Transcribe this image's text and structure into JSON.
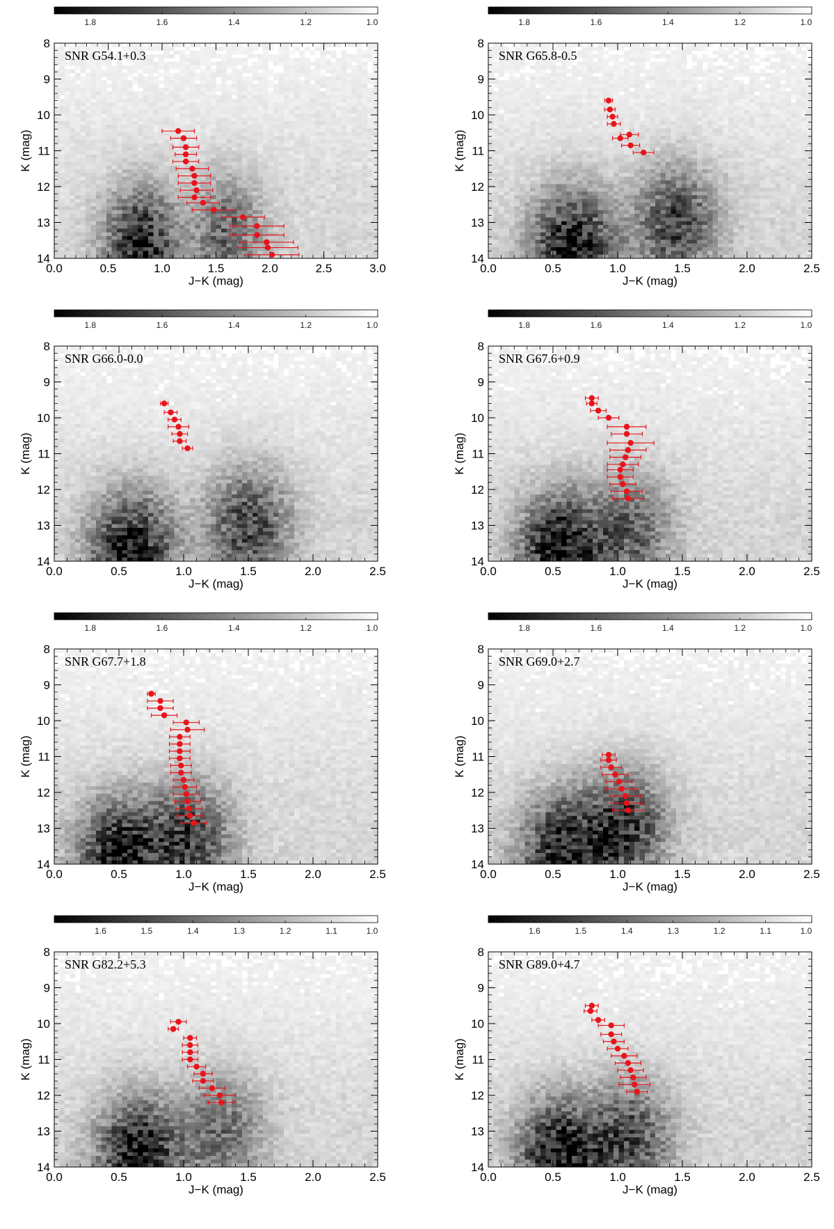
{
  "chart_data": [
    {
      "type": "scatter",
      "title": "SNR G54.1+0.3",
      "xlabel": "J−K (mag)",
      "ylabel": "K (mag)",
      "xlim": [
        0.0,
        3.0
      ],
      "ylim": [
        14.0,
        8.0
      ],
      "xticks": [
        "0.0",
        "0.5",
        "1.0",
        "1.5",
        "2.0",
        "2.5",
        "3.0"
      ],
      "yticks": [
        "8",
        "9",
        "10",
        "11",
        "12",
        "13",
        "14"
      ],
      "colorbar": {
        "ticks": [
          "1.8",
          "1.6",
          "1.4",
          "1.2",
          "1.0"
        ],
        "min": 1.0,
        "max": 1.9
      },
      "density_peaks": [
        [
          0.8,
          13.7,
          1.0
        ],
        [
          1.6,
          13.3,
          0.6
        ]
      ],
      "series": [
        {
          "points": [
            {
              "x": 1.15,
              "y": 10.45,
              "xerr": 0.15
            },
            {
              "x": 1.2,
              "y": 10.65,
              "xerr": 0.12
            },
            {
              "x": 1.22,
              "y": 10.9,
              "xerr": 0.12
            },
            {
              "x": 1.22,
              "y": 11.1,
              "xerr": 0.1
            },
            {
              "x": 1.22,
              "y": 11.3,
              "xerr": 0.12
            },
            {
              "x": 1.28,
              "y": 11.5,
              "xerr": 0.15
            },
            {
              "x": 1.3,
              "y": 11.7,
              "xerr": 0.15
            },
            {
              "x": 1.3,
              "y": 11.9,
              "xerr": 0.15
            },
            {
              "x": 1.32,
              "y": 12.1,
              "xerr": 0.15
            },
            {
              "x": 1.3,
              "y": 12.3,
              "xerr": 0.15
            },
            {
              "x": 1.38,
              "y": 12.45,
              "xerr": 0.15
            },
            {
              "x": 1.48,
              "y": 12.65,
              "xerr": 0.2
            },
            {
              "x": 1.75,
              "y": 12.85,
              "xerr": 0.2
            },
            {
              "x": 1.88,
              "y": 13.1,
              "xerr": 0.25
            },
            {
              "x": 1.88,
              "y": 13.35,
              "xerr": 0.25
            },
            {
              "x": 1.97,
              "y": 13.55,
              "xerr": 0.25
            },
            {
              "x": 1.98,
              "y": 13.7,
              "xerr": 0.28
            },
            {
              "x": 2.02,
              "y": 13.9,
              "xerr": 0.25
            }
          ]
        }
      ]
    },
    {
      "type": "scatter",
      "title": "SNR G65.8-0.5",
      "xlabel": "J−K (mag)",
      "ylabel": "K (mag)",
      "xlim": [
        0.0,
        2.5
      ],
      "ylim": [
        14.0,
        8.0
      ],
      "xticks": [
        "0.0",
        "0.5",
        "1.0",
        "1.5",
        "2.0",
        "2.5"
      ],
      "yticks": [
        "8",
        "9",
        "10",
        "11",
        "12",
        "13",
        "14"
      ],
      "colorbar": {
        "ticks": [
          "1.8",
          "1.6",
          "1.4",
          "1.2",
          "1.0"
        ],
        "min": 1.0,
        "max": 1.9
      },
      "density_peaks": [
        [
          0.65,
          13.7,
          1.0
        ],
        [
          1.45,
          13.0,
          0.75
        ]
      ],
      "series": [
        {
          "points": [
            {
              "x": 0.93,
              "y": 9.6,
              "xerr": 0.03
            },
            {
              "x": 0.94,
              "y": 9.85,
              "xerr": 0.04
            },
            {
              "x": 0.96,
              "y": 10.05,
              "xerr": 0.04
            },
            {
              "x": 0.97,
              "y": 10.25,
              "xerr": 0.05
            },
            {
              "x": 1.09,
              "y": 10.55,
              "xerr": 0.07
            },
            {
              "x": 1.02,
              "y": 10.65,
              "xerr": 0.06
            },
            {
              "x": 1.1,
              "y": 10.85,
              "xerr": 0.07
            },
            {
              "x": 1.2,
              "y": 11.05,
              "xerr": 0.08
            }
          ]
        }
      ]
    },
    {
      "type": "scatter",
      "title": "SNR G66.0-0.0",
      "xlabel": "J−K (mag)",
      "ylabel": "K (mag)",
      "xlim": [
        0.0,
        2.5
      ],
      "ylim": [
        14.0,
        8.0
      ],
      "xticks": [
        "0.0",
        "0.5",
        "1.0",
        "1.5",
        "2.0",
        "2.5"
      ],
      "yticks": [
        "8",
        "9",
        "10",
        "11",
        "12",
        "13",
        "14"
      ],
      "colorbar": {
        "ticks": [
          "1.8",
          "1.6",
          "1.4",
          "1.2",
          "1.0"
        ],
        "min": 1.0,
        "max": 1.9
      },
      "density_peaks": [
        [
          0.6,
          13.7,
          1.0
        ],
        [
          1.5,
          13.0,
          0.75
        ]
      ],
      "series": [
        {
          "points": [
            {
              "x": 0.85,
              "y": 9.6,
              "xerr": 0.03
            },
            {
              "x": 0.9,
              "y": 9.85,
              "xerr": 0.05
            },
            {
              "x": 0.93,
              "y": 10.05,
              "xerr": 0.05
            },
            {
              "x": 0.96,
              "y": 10.25,
              "xerr": 0.08
            },
            {
              "x": 0.97,
              "y": 10.45,
              "xerr": 0.06
            },
            {
              "x": 0.97,
              "y": 10.65,
              "xerr": 0.05
            },
            {
              "x": 1.03,
              "y": 10.85,
              "xerr": 0.04
            }
          ]
        }
      ]
    },
    {
      "type": "scatter",
      "title": "SNR G67.6+0.9",
      "xlabel": "J−K (mag)",
      "ylabel": "K (mag)",
      "xlim": [
        0.0,
        2.5
      ],
      "ylim": [
        14.0,
        8.0
      ],
      "xticks": [
        "0.0",
        "0.5",
        "1.0",
        "1.5",
        "2.0",
        "2.5"
      ],
      "yticks": [
        "8",
        "9",
        "10",
        "11",
        "12",
        "13",
        "14"
      ],
      "colorbar": {
        "ticks": [
          "1.8",
          "1.6",
          "1.4",
          "1.2",
          "1.0"
        ],
        "min": 1.0,
        "max": 1.9
      },
      "density_peaks": [
        [
          0.55,
          13.7,
          1.0
        ],
        [
          1.1,
          13.2,
          0.6
        ]
      ],
      "series": [
        {
          "points": [
            {
              "x": 0.8,
              "y": 9.45,
              "xerr": 0.05
            },
            {
              "x": 0.8,
              "y": 9.6,
              "xerr": 0.04
            },
            {
              "x": 0.85,
              "y": 9.8,
              "xerr": 0.06
            },
            {
              "x": 0.93,
              "y": 10.0,
              "xerr": 0.08
            },
            {
              "x": 1.07,
              "y": 10.25,
              "xerr": 0.15
            },
            {
              "x": 1.07,
              "y": 10.45,
              "xerr": 0.12
            },
            {
              "x": 1.1,
              "y": 10.7,
              "xerr": 0.18
            },
            {
              "x": 1.08,
              "y": 10.9,
              "xerr": 0.14
            },
            {
              "x": 1.06,
              "y": 11.1,
              "xerr": 0.12
            },
            {
              "x": 1.04,
              "y": 11.3,
              "xerr": 0.12
            },
            {
              "x": 1.02,
              "y": 11.45,
              "xerr": 0.1
            },
            {
              "x": 1.02,
              "y": 11.65,
              "xerr": 0.1
            },
            {
              "x": 1.04,
              "y": 11.85,
              "xerr": 0.1
            },
            {
              "x": 1.07,
              "y": 12.05,
              "xerr": 0.12
            },
            {
              "x": 1.08,
              "y": 12.25,
              "xerr": 0.12
            }
          ]
        }
      ]
    },
    {
      "type": "scatter",
      "title": "SNR G67.7+1.8",
      "xlabel": "J−K (mag)",
      "ylabel": "K (mag)",
      "xlim": [
        0.0,
        2.5
      ],
      "ylim": [
        14.0,
        8.0
      ],
      "xticks": [
        "0.0",
        "0.5",
        "1.0",
        "1.5",
        "2.0",
        "2.5"
      ],
      "yticks": [
        "8",
        "9",
        "10",
        "11",
        "12",
        "13",
        "14"
      ],
      "colorbar": {
        "ticks": [
          "1.8",
          "1.6",
          "1.4",
          "1.2",
          "1.0"
        ],
        "min": 1.0,
        "max": 1.9
      },
      "density_peaks": [
        [
          0.5,
          13.8,
          1.0
        ],
        [
          1.05,
          13.3,
          0.75
        ]
      ],
      "series": [
        {
          "points": [
            {
              "x": 0.75,
              "y": 9.25,
              "xerr": 0.03
            },
            {
              "x": 0.82,
              "y": 9.45,
              "xerr": 0.1
            },
            {
              "x": 0.82,
              "y": 9.65,
              "xerr": 0.1
            },
            {
              "x": 0.85,
              "y": 9.85,
              "xerr": 0.1
            },
            {
              "x": 1.02,
              "y": 10.05,
              "xerr": 0.1
            },
            {
              "x": 1.03,
              "y": 10.25,
              "xerr": 0.13
            },
            {
              "x": 0.97,
              "y": 10.45,
              "xerr": 0.08
            },
            {
              "x": 0.97,
              "y": 10.65,
              "xerr": 0.08
            },
            {
              "x": 0.97,
              "y": 10.85,
              "xerr": 0.08
            },
            {
              "x": 0.97,
              "y": 11.05,
              "xerr": 0.08
            },
            {
              "x": 0.98,
              "y": 11.25,
              "xerr": 0.08
            },
            {
              "x": 0.98,
              "y": 11.45,
              "xerr": 0.08
            },
            {
              "x": 1.0,
              "y": 11.65,
              "xerr": 0.08
            },
            {
              "x": 1.01,
              "y": 11.85,
              "xerr": 0.09
            },
            {
              "x": 1.02,
              "y": 12.05,
              "xerr": 0.1
            },
            {
              "x": 1.03,
              "y": 12.25,
              "xerr": 0.1
            },
            {
              "x": 1.04,
              "y": 12.45,
              "xerr": 0.1
            },
            {
              "x": 1.05,
              "y": 12.65,
              "xerr": 0.1
            },
            {
              "x": 1.08,
              "y": 12.85,
              "xerr": 0.1
            }
          ]
        }
      ]
    },
    {
      "type": "scatter",
      "title": "SNR G69.0+2.7",
      "xlabel": "J−K (mag)",
      "ylabel": "K (mag)",
      "xlim": [
        0.0,
        2.5
      ],
      "ylim": [
        14.0,
        8.0
      ],
      "xticks": [
        "0.0",
        "0.5",
        "1.0",
        "1.5",
        "2.0",
        "2.5"
      ],
      "yticks": [
        "8",
        "9",
        "10",
        "11",
        "12",
        "13",
        "14"
      ],
      "colorbar": {
        "ticks": [
          "1.8",
          "1.6",
          "1.4",
          "1.2",
          "1.0"
        ],
        "min": 1.0,
        "max": 1.9
      },
      "density_peaks": [
        [
          0.55,
          13.7,
          0.9
        ],
        [
          1.05,
          13.0,
          0.85
        ]
      ],
      "series": [
        {
          "points": [
            {
              "x": 0.93,
              "y": 10.95,
              "xerr": 0.05
            },
            {
              "x": 0.93,
              "y": 11.1,
              "xerr": 0.06
            },
            {
              "x": 0.95,
              "y": 11.3,
              "xerr": 0.08
            },
            {
              "x": 0.98,
              "y": 11.5,
              "xerr": 0.1
            },
            {
              "x": 1.01,
              "y": 11.7,
              "xerr": 0.1
            },
            {
              "x": 1.03,
              "y": 11.9,
              "xerr": 0.12
            },
            {
              "x": 1.06,
              "y": 12.1,
              "xerr": 0.12
            },
            {
              "x": 1.07,
              "y": 12.3,
              "xerr": 0.12
            },
            {
              "x": 1.08,
              "y": 12.5,
              "xerr": 0.12
            }
          ]
        }
      ]
    },
    {
      "type": "scatter",
      "title": "SNR G82.2+5.3",
      "xlabel": "J−K (mag)",
      "ylabel": "K (mag)",
      "xlim": [
        0.0,
        2.5
      ],
      "ylim": [
        14.0,
        8.0
      ],
      "xticks": [
        "0.0",
        "0.5",
        "1.0",
        "1.5",
        "2.0",
        "2.5"
      ],
      "yticks": [
        "8",
        "9",
        "10",
        "11",
        "12",
        "13",
        "14"
      ],
      "colorbar": {
        "ticks": [
          "1.6",
          "1.5",
          "1.4",
          "1.3",
          "1.2",
          "1.1",
          "1.0"
        ],
        "min": 1.0,
        "max": 1.7
      },
      "density_peaks": [
        [
          0.65,
          13.7,
          1.0
        ],
        [
          1.3,
          13.0,
          0.55
        ]
      ],
      "series": [
        {
          "points": [
            {
              "x": 0.96,
              "y": 9.95,
              "xerr": 0.06
            },
            {
              "x": 0.92,
              "y": 10.15,
              "xerr": 0.04
            },
            {
              "x": 1.05,
              "y": 10.4,
              "xerr": 0.05
            },
            {
              "x": 1.05,
              "y": 10.6,
              "xerr": 0.06
            },
            {
              "x": 1.05,
              "y": 10.8,
              "xerr": 0.06
            },
            {
              "x": 1.05,
              "y": 11.0,
              "xerr": 0.06
            },
            {
              "x": 1.1,
              "y": 11.2,
              "xerr": 0.07
            },
            {
              "x": 1.15,
              "y": 11.4,
              "xerr": 0.07
            },
            {
              "x": 1.15,
              "y": 11.6,
              "xerr": 0.08
            },
            {
              "x": 1.22,
              "y": 11.8,
              "xerr": 0.1
            },
            {
              "x": 1.28,
              "y": 12.0,
              "xerr": 0.12
            },
            {
              "x": 1.29,
              "y": 12.2,
              "xerr": 0.1
            }
          ]
        }
      ]
    },
    {
      "type": "scatter",
      "title": "SNR G89.0+4.7",
      "xlabel": "J−K (mag)",
      "ylabel": "K (mag)",
      "xlim": [
        0.0,
        2.5
      ],
      "ylim": [
        14.0,
        8.0
      ],
      "xticks": [
        "0.0",
        "0.5",
        "1.0",
        "1.5",
        "2.0",
        "2.5"
      ],
      "yticks": [
        "8",
        "9",
        "10",
        "11",
        "12",
        "13",
        "14"
      ],
      "colorbar": {
        "ticks": [
          "1.6",
          "1.5",
          "1.4",
          "1.3",
          "1.2",
          "1.1",
          "1.0"
        ],
        "min": 1.0,
        "max": 1.7
      },
      "density_peaks": [
        [
          0.55,
          13.7,
          1.0
        ],
        [
          1.1,
          13.2,
          0.7
        ]
      ],
      "series": [
        {
          "points": [
            {
              "x": 0.8,
              "y": 9.5,
              "xerr": 0.05
            },
            {
              "x": 0.79,
              "y": 9.65,
              "xerr": 0.05
            },
            {
              "x": 0.85,
              "y": 9.9,
              "xerr": 0.05
            },
            {
              "x": 0.95,
              "y": 10.05,
              "xerr": 0.1
            },
            {
              "x": 0.95,
              "y": 10.3,
              "xerr": 0.08
            },
            {
              "x": 0.97,
              "y": 10.5,
              "xerr": 0.08
            },
            {
              "x": 1.0,
              "y": 10.7,
              "xerr": 0.08
            },
            {
              "x": 1.05,
              "y": 10.9,
              "xerr": 0.1
            },
            {
              "x": 1.08,
              "y": 11.1,
              "xerr": 0.1
            },
            {
              "x": 1.1,
              "y": 11.3,
              "xerr": 0.1
            },
            {
              "x": 1.12,
              "y": 11.5,
              "xerr": 0.1
            },
            {
              "x": 1.13,
              "y": 11.7,
              "xerr": 0.12
            },
            {
              "x": 1.15,
              "y": 11.9,
              "xerr": 0.08
            }
          ]
        }
      ]
    }
  ]
}
